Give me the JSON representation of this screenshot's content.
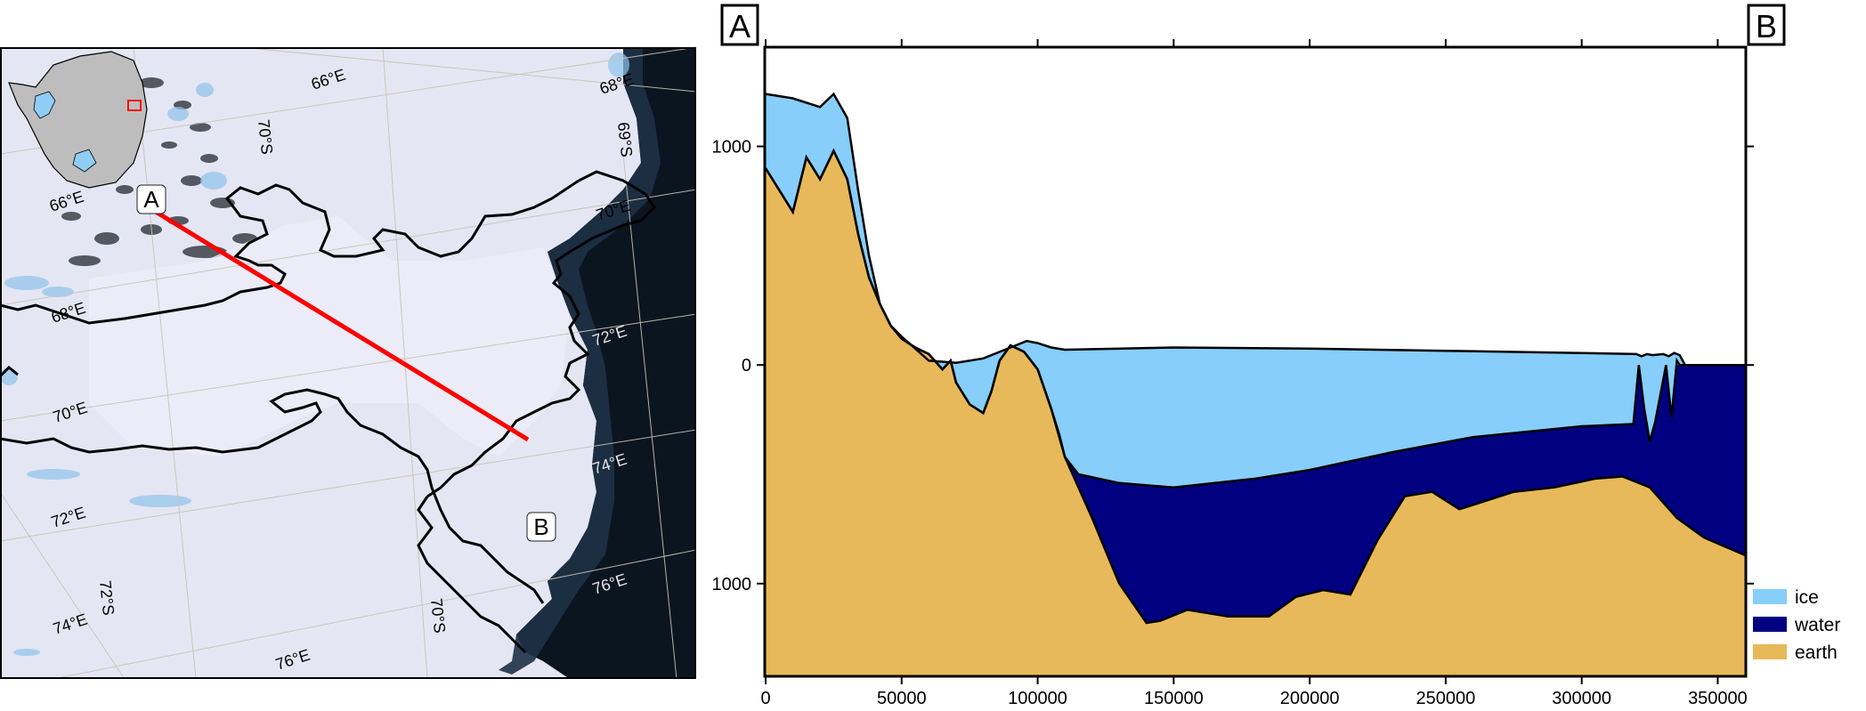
{
  "map": {
    "point_start": "A",
    "point_end": "B",
    "longitude_labels": [
      "66°E",
      "68°E",
      "70°E",
      "72°E",
      "74°E",
      "76°E",
      "66°E",
      "68°E",
      "70°E",
      "72°E",
      "74°E",
      "76°E"
    ],
    "latitude_labels": [
      "70°S",
      "69°S",
      "70°S",
      "72°S"
    ],
    "colors": {
      "profile_line": "#ff0000",
      "coastline": "#000000",
      "ocean": "#0b1520",
      "ice_shelf": "#e6e8f4",
      "inset_land": "#bdbdbd",
      "inset_highlight": "#ff0000"
    }
  },
  "chart_data": {
    "type": "area",
    "start_label": "A",
    "end_label": "B",
    "xlim": [
      0,
      360000
    ],
    "ylim": [
      -1420,
      1450
    ],
    "x_ticks": [
      0,
      50000,
      100000,
      150000,
      200000,
      250000,
      300000,
      350000
    ],
    "x_tick_labels": [
      "0",
      "50000",
      "100000",
      "150000",
      "200000",
      "250000",
      "300000",
      "350000"
    ],
    "y_ticks": [
      1000,
      0,
      -1000
    ],
    "y_tick_labels": [
      "1000",
      "0",
      "1000"
    ],
    "legend_position": "bottom-right",
    "series": [
      {
        "name": "ice",
        "color": "#87cefa"
      },
      {
        "name": "water",
        "color": "#000080"
      },
      {
        "name": "earth",
        "color": "#e8b95a"
      }
    ],
    "surface": {
      "x": [
        0,
        10000,
        20000,
        25000,
        30000,
        34000,
        38000,
        42000,
        46000,
        50000,
        60000,
        70000,
        80000,
        90000,
        96000,
        100000,
        105000,
        110000,
        150000,
        200000,
        250000,
        300000,
        320000,
        322000,
        324000,
        326000,
        330000,
        332000,
        334000,
        336000,
        338000,
        360000
      ],
      "y": [
        1240,
        1220,
        1180,
        1240,
        1130,
        800,
        500,
        280,
        180,
        130,
        20,
        10,
        30,
        80,
        110,
        100,
        80,
        70,
        80,
        75,
        65,
        55,
        50,
        40,
        50,
        45,
        50,
        40,
        55,
        45,
        0,
        0
      ]
    },
    "ice_base": {
      "x": [
        0,
        10000,
        15000,
        20000,
        25000,
        30000,
        34000,
        38000,
        42000,
        46000,
        50000,
        55000,
        60000,
        65000,
        68000,
        70000,
        75000,
        80000,
        83000,
        86000,
        90000,
        95000,
        100000,
        105000,
        108000,
        110000,
        115000,
        130000,
        150000,
        180000,
        200000,
        230000,
        260000,
        300000,
        319000,
        321000,
        323000,
        325000,
        327000,
        331000,
        333000,
        335000,
        336000,
        338000
      ],
      "y": [
        900,
        700,
        950,
        850,
        980,
        850,
        600,
        400,
        280,
        180,
        120,
        80,
        50,
        -20,
        20,
        -80,
        -180,
        -220,
        -120,
        20,
        90,
        60,
        -20,
        -200,
        -320,
        -420,
        -500,
        -540,
        -560,
        -520,
        -480,
        -400,
        -330,
        -280,
        -270,
        0,
        -200,
        -350,
        -260,
        0,
        -240,
        20,
        0,
        0
      ]
    },
    "bed": {
      "x": [
        0,
        10000,
        15000,
        20000,
        25000,
        30000,
        34000,
        38000,
        42000,
        46000,
        50000,
        55000,
        60000,
        65000,
        68000,
        70000,
        75000,
        80000,
        83000,
        86000,
        90000,
        95000,
        100000,
        105000,
        110000,
        120000,
        130000,
        140000,
        145000,
        155000,
        170000,
        185000,
        195000,
        205000,
        215000,
        225000,
        235000,
        245000,
        255000,
        265000,
        275000,
        290000,
        305000,
        315000,
        325000,
        335000,
        345000,
        360000
      ],
      "y": [
        900,
        700,
        950,
        850,
        980,
        850,
        600,
        400,
        280,
        180,
        120,
        80,
        50,
        -20,
        20,
        -80,
        -180,
        -220,
        -120,
        20,
        90,
        60,
        -20,
        -200,
        -420,
        -700,
        -1000,
        -1180,
        -1170,
        -1120,
        -1150,
        -1150,
        -1060,
        -1030,
        -1050,
        -800,
        -600,
        -580,
        -660,
        -620,
        -580,
        -560,
        -520,
        -510,
        -560,
        -700,
        -790,
        -870
      ]
    }
  }
}
